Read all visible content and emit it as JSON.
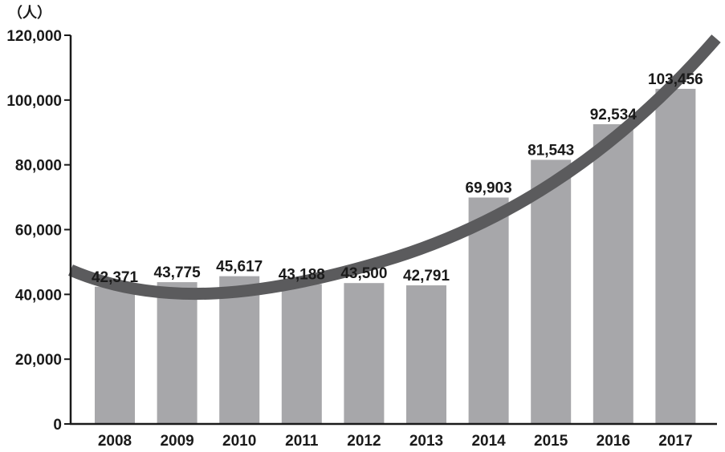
{
  "chart_data": {
    "type": "bar",
    "title": "",
    "xlabel": "",
    "ylabel": "（人）",
    "categories": [
      "2008",
      "2009",
      "2010",
      "2011",
      "2012",
      "2013",
      "2014",
      "2015",
      "2016",
      "2017"
    ],
    "values": [
      42371,
      43775,
      45617,
      43188,
      43500,
      42791,
      69903,
      81543,
      92534,
      103456
    ],
    "value_labels": [
      "42,371",
      "43,775",
      "45,617",
      "43,188",
      "43,500",
      "42,791",
      "69,903",
      "81,543",
      "92,534",
      "103,456"
    ],
    "ylim": [
      0,
      120000
    ],
    "yticks": [
      0,
      20000,
      40000,
      60000,
      80000,
      100000,
      120000
    ],
    "ytick_labels": [
      "0",
      "20,000",
      "40,000",
      "60,000",
      "80,000",
      "100,000",
      "120,000"
    ],
    "grid": false,
    "legend": "none",
    "trend_arrow": true,
    "colors": {
      "bar": "#a7a7aa",
      "trend": "#5b5b5d",
      "axis": "#1a1a1a"
    }
  }
}
